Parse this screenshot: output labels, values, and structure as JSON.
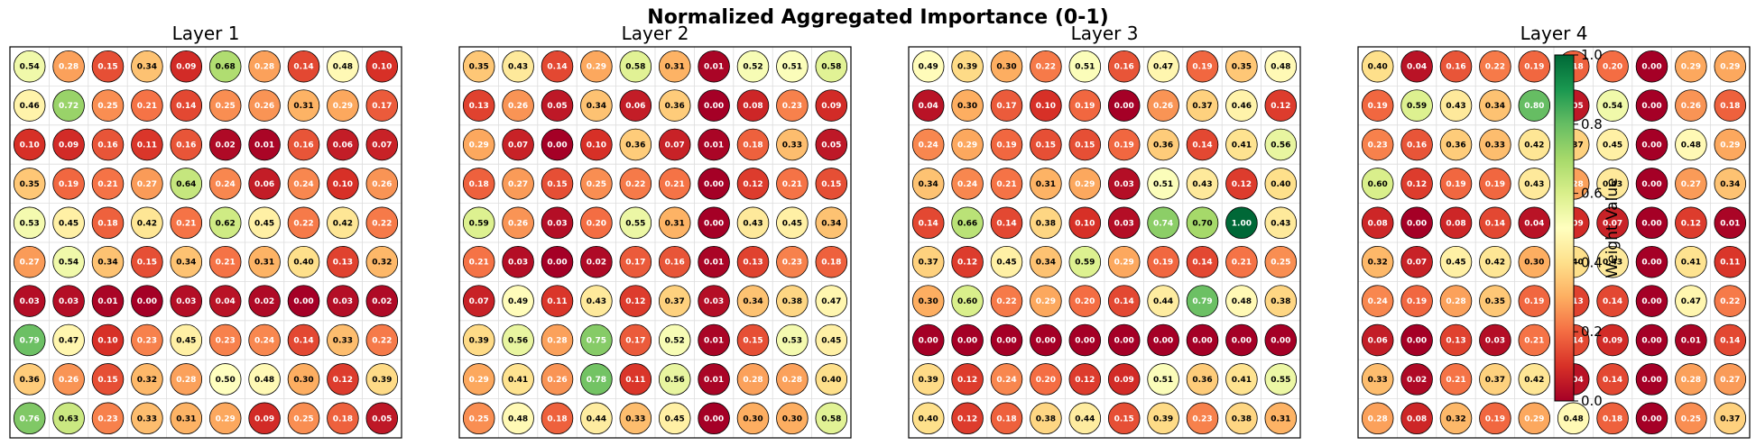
{
  "chart_data": {
    "type": "heatmap",
    "title": "Normalized Aggregated Importance (0-1)",
    "colormap": "RdYlGn",
    "colorbar": {
      "label": "Weight Value",
      "ticks": [
        "0.0",
        "0.2",
        "0.4",
        "0.6",
        "0.8",
        "1.0"
      ],
      "range": [
        0,
        1
      ]
    },
    "panels": [
      {
        "title": "Layer 1",
        "values": [
          [
            0.54,
            0.28,
            0.15,
            0.34,
            0.09,
            0.68,
            0.28,
            0.14,
            0.48,
            0.1
          ],
          [
            0.46,
            0.72,
            0.25,
            0.21,
            0.14,
            0.25,
            0.26,
            0.31,
            0.29,
            0.17
          ],
          [
            0.1,
            0.09,
            0.16,
            0.11,
            0.16,
            0.02,
            0.01,
            0.16,
            0.06,
            0.07
          ],
          [
            0.35,
            0.19,
            0.21,
            0.27,
            0.64,
            0.24,
            0.06,
            0.24,
            0.1,
            0.26
          ],
          [
            0.53,
            0.45,
            0.18,
            0.42,
            0.21,
            0.62,
            0.45,
            0.22,
            0.42,
            0.22
          ],
          [
            0.27,
            0.54,
            0.34,
            0.15,
            0.34,
            0.21,
            0.31,
            0.4,
            0.13,
            0.32
          ],
          [
            0.03,
            0.03,
            0.01,
            0.0,
            0.03,
            0.04,
            0.02,
            0.0,
            0.03,
            0.02
          ],
          [
            0.79,
            0.47,
            0.1,
            0.23,
            0.45,
            0.23,
            0.24,
            0.14,
            0.33,
            0.22
          ],
          [
            0.36,
            0.26,
            0.15,
            0.32,
            0.28,
            0.5,
            0.48,
            0.3,
            0.12,
            0.39
          ],
          [
            0.76,
            0.63,
            0.23,
            0.33,
            0.31,
            0.29,
            0.09,
            0.25,
            0.18,
            0.05
          ]
        ]
      },
      {
        "title": "Layer 2",
        "values": [
          [
            0.35,
            0.43,
            0.14,
            0.29,
            0.58,
            0.31,
            0.01,
            0.52,
            0.51,
            0.58
          ],
          [
            0.13,
            0.26,
            0.05,
            0.34,
            0.06,
            0.36,
            0.0,
            0.08,
            0.23,
            0.09
          ],
          [
            0.29,
            0.07,
            0.0,
            0.1,
            0.36,
            0.07,
            0.01,
            0.18,
            0.33,
            0.05
          ],
          [
            0.18,
            0.27,
            0.15,
            0.25,
            0.22,
            0.21,
            0.0,
            0.12,
            0.21,
            0.15
          ],
          [
            0.59,
            0.26,
            0.03,
            0.2,
            0.55,
            0.31,
            0.0,
            0.43,
            0.45,
            0.34
          ],
          [
            0.21,
            0.03,
            0.0,
            0.02,
            0.17,
            0.16,
            0.01,
            0.13,
            0.23,
            0.18
          ],
          [
            0.07,
            0.49,
            0.11,
            0.43,
            0.12,
            0.37,
            0.03,
            0.34,
            0.38,
            0.47
          ],
          [
            0.39,
            0.56,
            0.28,
            0.75,
            0.17,
            0.52,
            0.01,
            0.15,
            0.53,
            0.45
          ],
          [
            0.29,
            0.41,
            0.26,
            0.78,
            0.11,
            0.56,
            0.01,
            0.28,
            0.28,
            0.4
          ],
          [
            0.25,
            0.48,
            0.18,
            0.44,
            0.33,
            0.45,
            0.0,
            0.3,
            0.3,
            0.58
          ]
        ]
      },
      {
        "title": "Layer 3",
        "values": [
          [
            0.49,
            0.39,
            0.3,
            0.22,
            0.51,
            0.16,
            0.47,
            0.19,
            0.35,
            0.48
          ],
          [
            0.04,
            0.3,
            0.17,
            0.1,
            0.19,
            0.0,
            0.26,
            0.37,
            0.46,
            0.12
          ],
          [
            0.24,
            0.29,
            0.19,
            0.15,
            0.15,
            0.19,
            0.36,
            0.14,
            0.41,
            0.56
          ],
          [
            0.34,
            0.24,
            0.21,
            0.31,
            0.29,
            0.03,
            0.51,
            0.43,
            0.12,
            0.4
          ],
          [
            0.14,
            0.66,
            0.14,
            0.38,
            0.1,
            0.03,
            0.74,
            0.7,
            1.0,
            0.43
          ],
          [
            0.37,
            0.12,
            0.45,
            0.34,
            0.59,
            0.29,
            0.19,
            0.14,
            0.21,
            0.25
          ],
          [
            0.3,
            0.6,
            0.22,
            0.29,
            0.2,
            0.14,
            0.44,
            0.79,
            0.48,
            0.38
          ],
          [
            0.0,
            0.0,
            0.0,
            0.0,
            0.0,
            0.0,
            0.0,
            0.0,
            0.0,
            0.0
          ],
          [
            0.39,
            0.12,
            0.24,
            0.2,
            0.12,
            0.09,
            0.51,
            0.36,
            0.41,
            0.55
          ],
          [
            0.4,
            0.12,
            0.18,
            0.38,
            0.44,
            0.15,
            0.39,
            0.23,
            0.38,
            0.31
          ]
        ]
      },
      {
        "title": "Layer 4",
        "values": [
          [
            0.4,
            0.04,
            0.16,
            0.22,
            0.19,
            0.18,
            0.2,
            0.0,
            0.29,
            0.29
          ],
          [
            0.19,
            0.59,
            0.43,
            0.34,
            0.8,
            0.05,
            0.54,
            0.0,
            0.26,
            0.18
          ],
          [
            0.23,
            0.16,
            0.36,
            0.33,
            0.42,
            0.37,
            0.45,
            0.0,
            0.48,
            0.29
          ],
          [
            0.6,
            0.12,
            0.19,
            0.19,
            0.43,
            0.28,
            0.43,
            0.0,
            0.27,
            0.34
          ],
          [
            0.08,
            0.0,
            0.08,
            0.14,
            0.04,
            0.09,
            0.07,
            0.0,
            0.12,
            0.01
          ],
          [
            0.32,
            0.07,
            0.45,
            0.42,
            0.3,
            0.4,
            0.43,
            0.0,
            0.41,
            0.11
          ],
          [
            0.24,
            0.19,
            0.28,
            0.35,
            0.19,
            0.13,
            0.14,
            0.0,
            0.47,
            0.22
          ],
          [
            0.06,
            0.0,
            0.13,
            0.03,
            0.21,
            0.14,
            0.09,
            0.0,
            0.01,
            0.14
          ],
          [
            0.33,
            0.02,
            0.21,
            0.37,
            0.42,
            0.04,
            0.14,
            0.0,
            0.28,
            0.27
          ],
          [
            0.28,
            0.08,
            0.32,
            0.19,
            0.29,
            0.48,
            0.18,
            0.0,
            0.25,
            0.37
          ]
        ]
      }
    ]
  }
}
